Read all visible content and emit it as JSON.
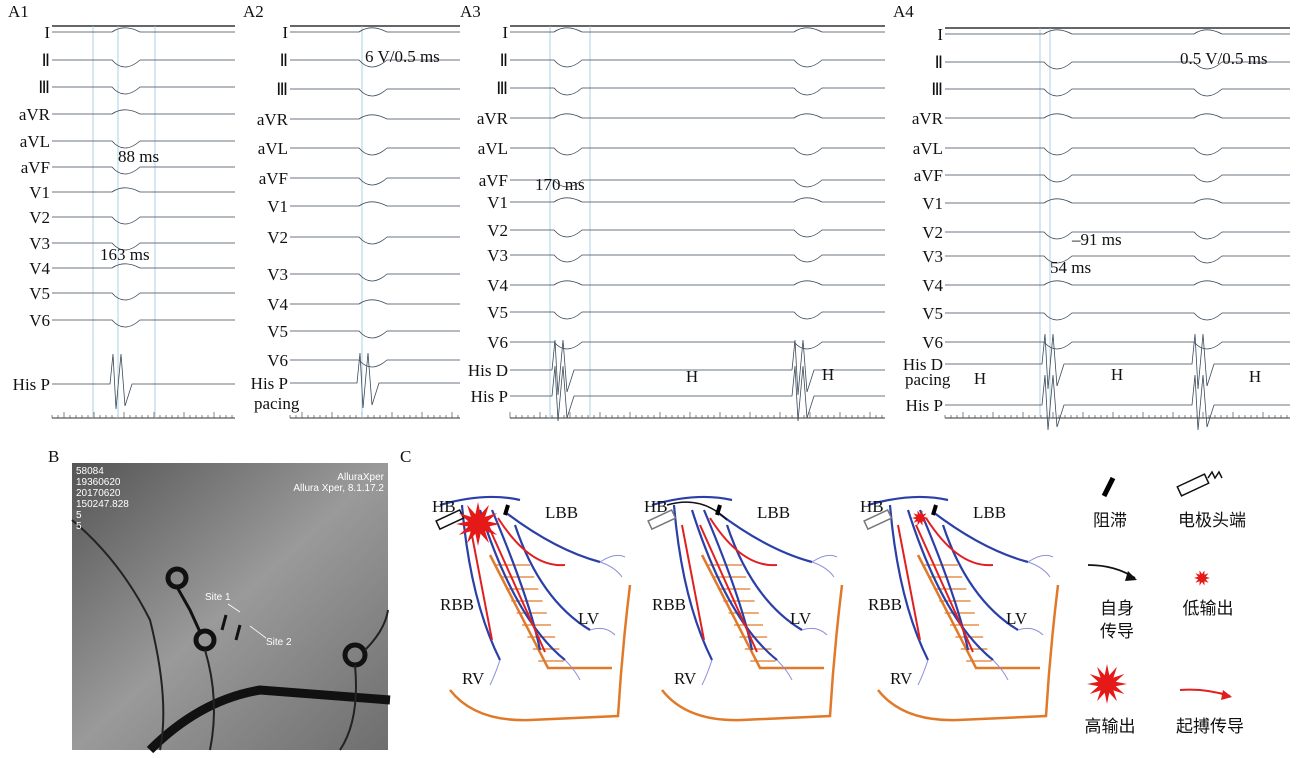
{
  "panels_a": [
    {
      "label": "A1",
      "leads": [
        "I",
        "Ⅱ",
        "Ⅲ",
        "aVR",
        "aVL",
        "aVF",
        "V1",
        "V2",
        "V3",
        "V4",
        "V5",
        "V6",
        "His P"
      ],
      "annotations": [
        "88 ms",
        "163 ms"
      ]
    },
    {
      "label": "A2",
      "leads": [
        "I",
        "Ⅱ",
        "Ⅲ",
        "aVR",
        "aVL",
        "aVF",
        "V1",
        "V2",
        "V3",
        "V4",
        "V5",
        "V6",
        "His P"
      ],
      "annotations": [
        "6 V/0.5 ms",
        "pacing"
      ]
    },
    {
      "label": "A3",
      "leads": [
        "I",
        "Ⅱ",
        "Ⅲ",
        "aVR",
        "aVL",
        "aVF",
        "V1",
        "V2",
        "V3",
        "V4",
        "V5",
        "V6",
        "His D",
        "His P"
      ],
      "annotations": [
        "170 ms",
        "H",
        "H"
      ]
    },
    {
      "label": "A4",
      "leads": [
        "I",
        "Ⅱ",
        "Ⅲ",
        "aVR",
        "aVL",
        "aVF",
        "V1",
        "V2",
        "V3",
        "V4",
        "V5",
        "V6",
        "His D",
        "His P"
      ],
      "annotations": [
        "0.5 V/0.5 ms",
        "–91 ms",
        "54 ms",
        "pacing",
        "H",
        "H",
        "H"
      ]
    }
  ],
  "panel_b": {
    "label": "B",
    "overlay_left": [
      "58084",
      "19360620",
      "20170620",
      "150247.828",
      "5",
      "5"
    ],
    "overlay_right": [
      "AlluraXper",
      "Allura Xper, 8.1.17.2"
    ],
    "sites": [
      "Site 1",
      "Site 2"
    ]
  },
  "panel_c": {
    "label": "C",
    "diagrams": [
      {
        "labels": [
          "HB",
          "LBB",
          "RBB",
          "LV",
          "RV"
        ]
      },
      {
        "labels": [
          "HB",
          "LBB",
          "RBB",
          "LV",
          "RV"
        ]
      },
      {
        "labels": [
          "HB",
          "LBB",
          "RBB",
          "LV",
          "RV"
        ]
      }
    ],
    "legend": [
      [
        "阻滞"
      ],
      [
        "电极头端"
      ],
      [
        "自身",
        "传导"
      ],
      [
        "低输出"
      ],
      [
        "高输出"
      ],
      [
        "起搏传导"
      ]
    ]
  }
}
